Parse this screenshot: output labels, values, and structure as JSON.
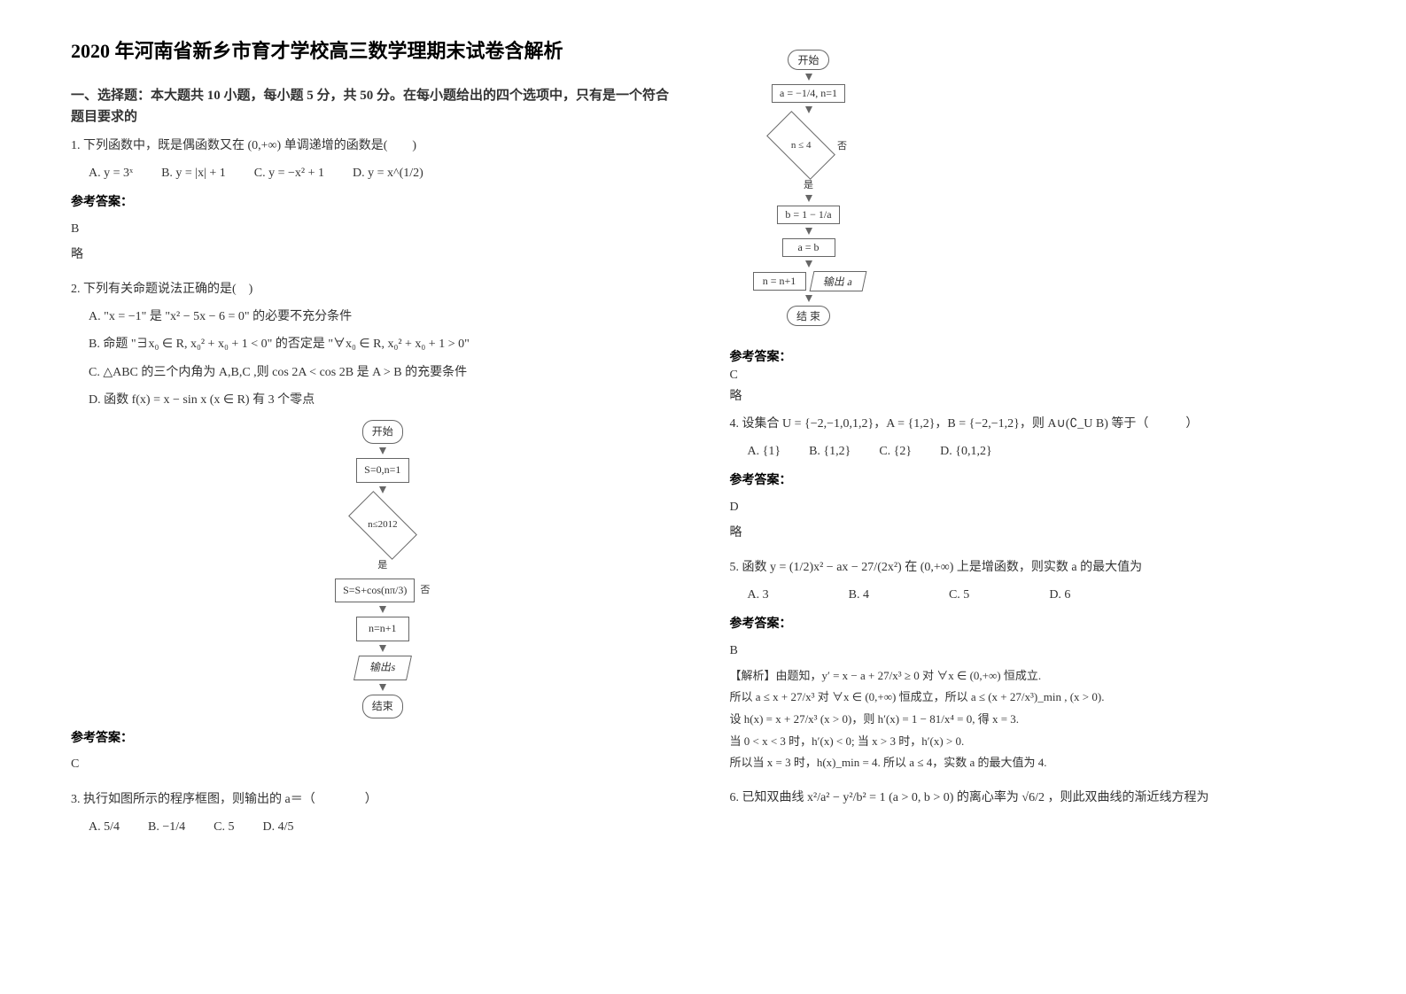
{
  "doc": {
    "title": "2020 年河南省新乡市育才学校高三数学理期末试卷含解析",
    "section1_head": "一、选择题：本大题共 10 小题，每小题 5 分，共 50 分。在每小题给出的四个选项中，只有是一个符合题目要求的"
  },
  "q1": {
    "text": "1. 下列函数中，既是偶函数又在 (0,+∞) 单调递增的函数是(　　)",
    "opts": {
      "a": "A.  y = 3ˣ",
      "b": "B.  y = |x| + 1",
      "c": "C.  y = −x² + 1",
      "d": "D.  y = x^(1/2)"
    },
    "answer_label": "参考答案：",
    "answer": "B",
    "brief": "略"
  },
  "q2": {
    "text": "2. 下列有关命题说法正确的是(　)",
    "opts": {
      "a": "A. \"x = −1\" 是 \"x² − 5x − 6 = 0\" 的必要不充分条件",
      "b": "B. 命题 \"∃x₀ ∈ R, x₀² + x₀ + 1 < 0\" 的否定是 \"∀x₀ ∈ R, x₀² + x₀ + 1 > 0\"",
      "c": "C. △ABC 的三个内角为 A,B,C ,则 cos 2A < cos 2B 是 A > B 的充要条件",
      "d": "D. 函数 f(x) = x − sin x (x ∈ R) 有 3 个零点"
    },
    "answer_label": "参考答案：",
    "answer": "C",
    "flow": {
      "start": "开始",
      "init": "S=0,n=1",
      "cond": "n≤2012",
      "yes": "是",
      "no": "否",
      "step1": "S=S+cos(nπ/3)",
      "step2": "n=n+1",
      "out": "输出s",
      "end": "结束"
    }
  },
  "q3": {
    "text": "3. 执行如图所示的程序框图，则输出的 a＝（　　　　）",
    "opts": {
      "a": "A. 5/4",
      "b": "B. −1/4",
      "c": "C. 5",
      "d": "D. 4/5"
    },
    "answer_label": "参考答案：",
    "answer": "C",
    "brief": "略",
    "flow": {
      "start": "开始",
      "init": "a = −1/4,  n=1",
      "cond": "n ≤ 4",
      "no": "否",
      "yes": "是",
      "step1": "b = 1 − 1/a",
      "step2": "a = b",
      "step3": "n = n+1",
      "out": "输出 a",
      "end": "结 束"
    }
  },
  "q4": {
    "text": "4. 设集合 U = {−2,−1,0,1,2}，A = {1,2}，B = {−2,−1,2}，则 A∪(∁_U B) 等于（　　　）",
    "opts": {
      "a": "A. {1}",
      "b": "B. {1,2}",
      "c": "C. {2}",
      "d": "D. {0,1,2}"
    },
    "answer_label": "参考答案：",
    "answer": "D",
    "brief": "略"
  },
  "q5": {
    "text": "5. 函数 y = (1/2)x² − ax − 27/(2x²) 在 (0,+∞) 上是增函数，则实数 a 的最大值为",
    "opts": {
      "a": "A. 3",
      "b": "B. 4",
      "c": "C. 5",
      "d": "D. 6"
    },
    "answer_label": "参考答案：",
    "answer": "B",
    "solution": {
      "l1": "【解析】由题知，y′ = x − a + 27/x³ ≥ 0 对 ∀x ∈ (0,+∞) 恒成立.",
      "l2": "所以 a ≤ x + 27/x³ 对 ∀x ∈ (0,+∞) 恒成立，所以 a ≤ (x + 27/x³)_min , (x > 0).",
      "l3": "设 h(x) = x + 27/x³ (x > 0)，则 h′(x) = 1 − 81/x⁴ = 0, 得 x = 3.",
      "l4": "当 0 < x < 3 时，h′(x) < 0; 当 x > 3 时，h′(x) > 0.",
      "l5": "所以当 x = 3 时，h(x)_min = 4. 所以 a ≤ 4，实数 a 的最大值为 4."
    }
  },
  "q6": {
    "text": "6. 已知双曲线 x²/a² − y²/b² = 1 (a > 0, b > 0) 的离心率为 √6/2 ，则此双曲线的渐近线方程为"
  }
}
